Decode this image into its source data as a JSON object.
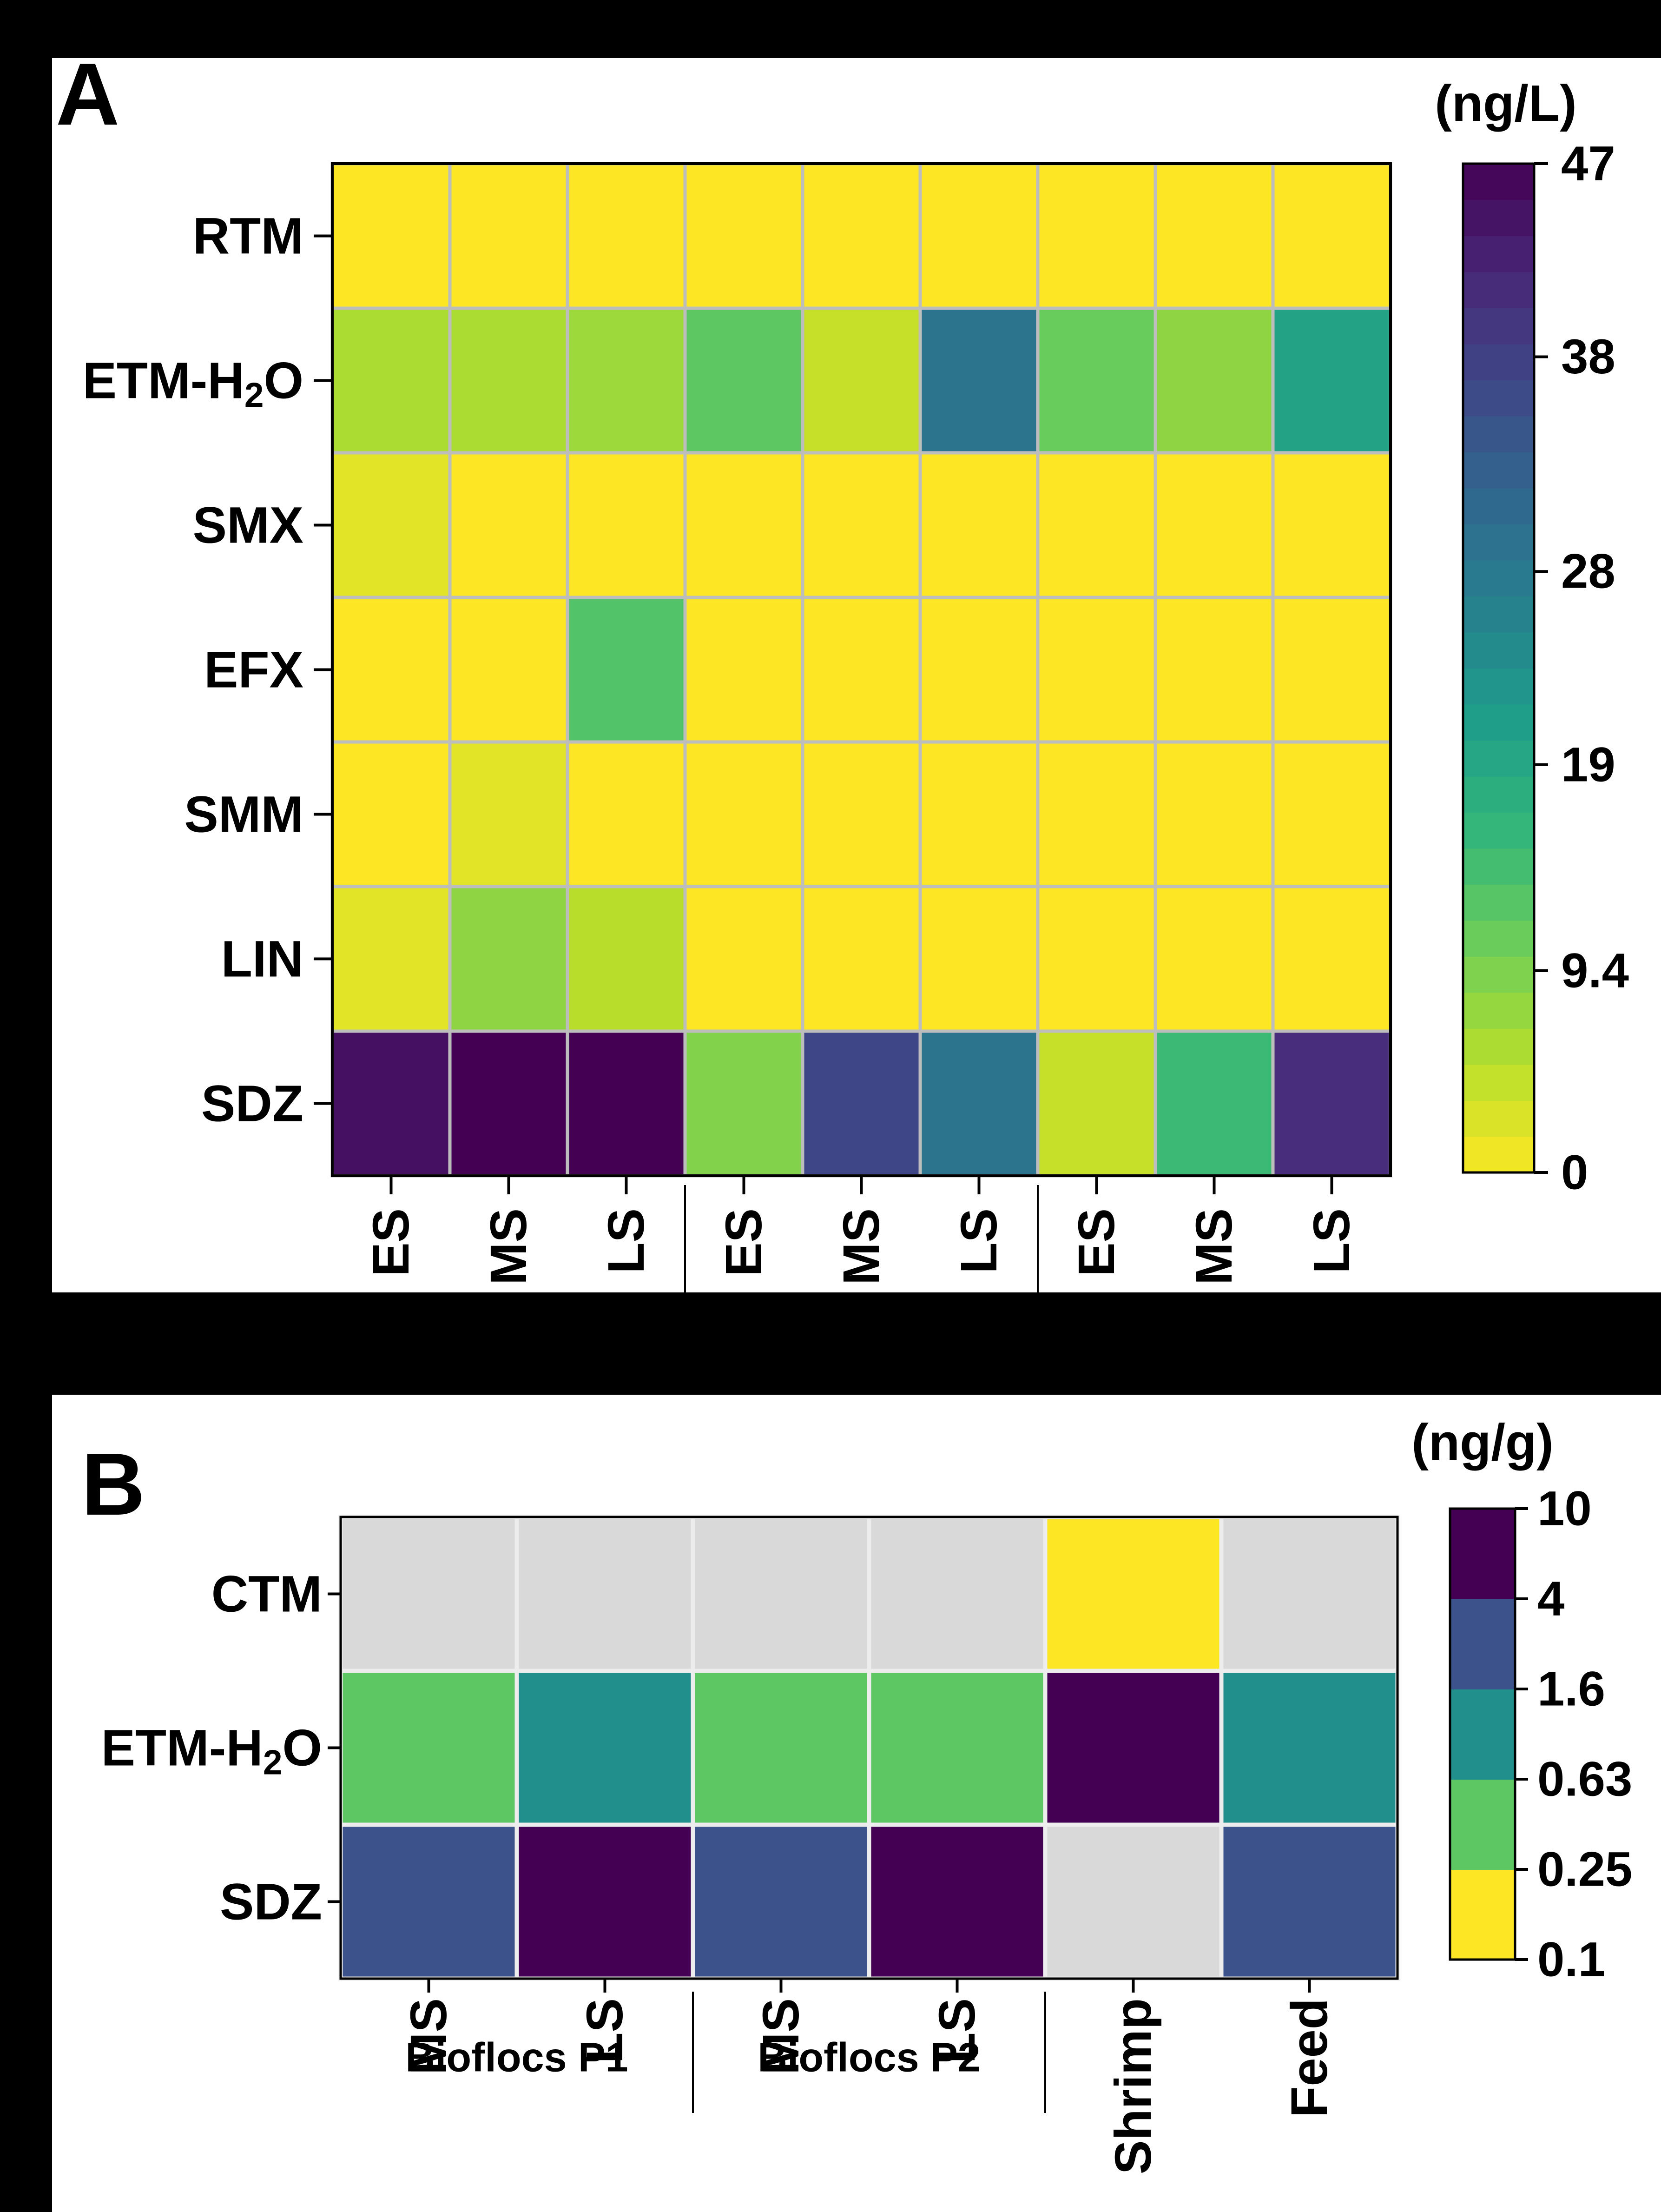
{
  "panels": {
    "a": {
      "label": "A",
      "unit": "(ng/L)"
    },
    "b": {
      "label": "B",
      "unit": "(ng/g)"
    }
  },
  "chart_data": [
    {
      "type": "heatmap",
      "panel": "A",
      "unit": "(ng/L)",
      "rows": [
        "RTM",
        "ETM-H2O",
        "SMX",
        "EFX",
        "SMM",
        "LIN",
        "SDZ"
      ],
      "row_labels": [
        {
          "main": "RTM",
          "sub": "",
          "tail": ""
        },
        {
          "main": "ETM-H",
          "sub": "2",
          "tail": "O"
        },
        {
          "main": "SMX",
          "sub": "",
          "tail": ""
        },
        {
          "main": "EFX",
          "sub": "",
          "tail": ""
        },
        {
          "main": "SMM",
          "sub": "",
          "tail": ""
        },
        {
          "main": "LIN",
          "sub": "",
          "tail": ""
        },
        {
          "main": "SDZ",
          "sub": "",
          "tail": ""
        }
      ],
      "columns": [
        "ES",
        "MS",
        "LS",
        "ES",
        "MS",
        "LS",
        "ES",
        "MS",
        "LS"
      ],
      "values": [
        [
          0,
          0,
          0,
          0,
          0,
          0,
          0,
          0,
          0
        ],
        [
          6,
          6,
          7,
          12,
          4,
          29,
          11,
          8,
          20
        ],
        [
          2,
          0,
          0,
          0,
          0,
          0,
          0,
          0,
          0
        ],
        [
          0,
          0,
          13,
          0,
          0,
          0,
          0,
          0,
          0
        ],
        [
          0,
          2,
          0,
          0,
          0,
          0,
          0,
          0,
          0
        ],
        [
          2,
          8,
          5,
          0,
          0,
          0,
          0,
          0,
          0
        ],
        [
          45,
          47,
          47,
          9,
          37,
          29,
          4,
          15,
          41
        ]
      ],
      "colorbar": {
        "min": 0,
        "max": 47,
        "ticks": [
          0,
          9.4,
          19,
          28,
          38,
          47
        ],
        "tick_labels": [
          "0",
          "9.4",
          "19",
          "28",
          "38",
          "47"
        ],
        "colormap": "viridis-reversed"
      },
      "group_separators_after_column": [
        3,
        6
      ],
      "grid": true
    },
    {
      "type": "heatmap",
      "panel": "B",
      "unit": "(ng/g)",
      "rows": [
        "CTM",
        "ETM-H2O",
        "SDZ"
      ],
      "row_labels": [
        {
          "main": "CTM",
          "sub": "",
          "tail": ""
        },
        {
          "main": "ETM-H",
          "sub": "2",
          "tail": "O"
        },
        {
          "main": "SDZ",
          "sub": "",
          "tail": ""
        }
      ],
      "columns": [
        "MS",
        "LS",
        "MS",
        "LS",
        "Shrimp",
        "Feed"
      ],
      "groups": [
        {
          "label": "Bioflocs P1",
          "span": 2
        },
        {
          "label": "Bioflocs P2",
          "span": 2
        },
        {
          "label": "",
          "span": 1
        },
        {
          "label": "",
          "span": 1
        }
      ],
      "bins": [
        {
          "range": [
            0.1,
            0.25
          ],
          "color": "#FDE725"
        },
        {
          "range": [
            0.25,
            0.63
          ],
          "color": "#5DC863"
        },
        {
          "range": [
            0.63,
            1.6
          ],
          "color": "#21908C"
        },
        {
          "range": [
            1.6,
            4
          ],
          "color": "#3B528B"
        },
        {
          "range": [
            4,
            10
          ],
          "color": "#440154"
        }
      ],
      "not_detected_color": "#D9D9D9",
      "values": [
        [
          null,
          null,
          null,
          null,
          0.2,
          null
        ],
        [
          0.4,
          1.0,
          0.4,
          0.4,
          6,
          1.0
        ],
        [
          3,
          6,
          3,
          6,
          null,
          3
        ]
      ],
      "colorbar": {
        "ticks": [
          0.1,
          0.25,
          0.63,
          1.6,
          4,
          10
        ],
        "tick_labels": [
          "0.1",
          "0.25",
          "0.63",
          "1.6",
          "4",
          "10"
        ]
      },
      "group_separators_after_column": [
        2,
        4
      ],
      "grid": true
    }
  ]
}
